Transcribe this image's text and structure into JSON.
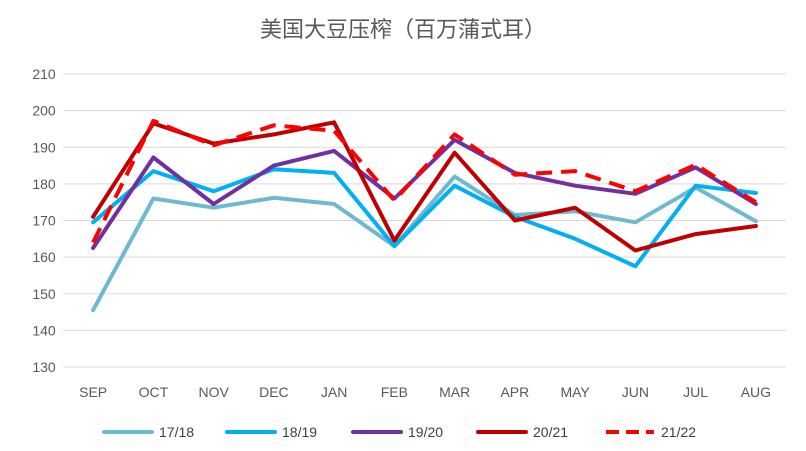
{
  "chart_data": {
    "type": "line",
    "title": "美国大豆压榨（百万蒲式耳）",
    "xlabel": "",
    "ylabel": "",
    "categories": [
      "SEP",
      "OCT",
      "NOV",
      "DEC",
      "JAN",
      "FEB",
      "MAR",
      "APR",
      "MAY",
      "JUN",
      "JUL",
      "AUG"
    ],
    "ylim": [
      130,
      210
    ],
    "yticks": [
      "130",
      "140",
      "150",
      "160",
      "170",
      "180",
      "190",
      "200",
      "210"
    ],
    "grid": true,
    "legend_position": "bottom",
    "series": [
      {
        "name": "17/18",
        "color": "#6dbad0",
        "dash": "solid",
        "values": [
          145.5,
          176,
          173.5,
          176.2,
          174.5,
          163,
          182,
          171.5,
          172.5,
          169.5,
          179,
          169.8
        ]
      },
      {
        "name": "18/19",
        "color": "#00b0f0",
        "dash": "solid",
        "values": [
          169.5,
          183.5,
          178,
          184,
          183,
          163,
          179.5,
          171,
          165,
          157.5,
          179.5,
          177.5
        ]
      },
      {
        "name": "19/20",
        "color": "#7030a0",
        "dash": "solid",
        "values": [
          162.5,
          187.2,
          174.5,
          185,
          189,
          176,
          192,
          183,
          179.5,
          177.3,
          184.5,
          174.5
        ]
      },
      {
        "name": "20/21",
        "color": "#c00000",
        "dash": "solid",
        "values": [
          171,
          196.5,
          191,
          193.5,
          196.8,
          164.5,
          188.5,
          170,
          173.5,
          161.8,
          166.3,
          168.5
        ]
      },
      {
        "name": "21/22",
        "color": "#ff0000",
        "dash": "dashed",
        "values": [
          164,
          197.2,
          190.5,
          196,
          194.5,
          175.5,
          193.5,
          182.5,
          183.5,
          178,
          185.2,
          175
        ]
      }
    ]
  }
}
